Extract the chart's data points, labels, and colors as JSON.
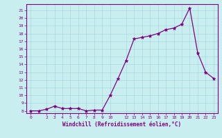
{
  "x": [
    0,
    1,
    2,
    3,
    4,
    5,
    6,
    7,
    8,
    9,
    10,
    11,
    12,
    13,
    14,
    15,
    16,
    17,
    18,
    19,
    20,
    21,
    22,
    23
  ],
  "y": [
    8.0,
    8.0,
    8.2,
    8.6,
    8.3,
    8.3,
    8.3,
    8.0,
    8.1,
    8.1,
    10.0,
    12.2,
    14.5,
    17.3,
    17.5,
    17.7,
    18.0,
    18.5,
    18.7,
    19.2,
    21.3,
    15.5,
    13.0,
    12.2
  ],
  "xlabel": "Windchill (Refroidissement éolien,°C)",
  "line_color": "#800080",
  "bg_color": "#c8eef0",
  "grid_color": "#a8d8dc",
  "tick_color": "#800080",
  "label_color": "#800080",
  "ylim_min": 7.7,
  "ylim_max": 21.8,
  "xlim_min": -0.5,
  "xlim_max": 23.5,
  "yticks": [
    8,
    9,
    10,
    11,
    12,
    13,
    14,
    15,
    16,
    17,
    18,
    19,
    20,
    21
  ],
  "xticks": [
    0,
    2,
    3,
    4,
    5,
    6,
    7,
    8,
    9,
    10,
    12,
    13,
    14,
    15,
    16,
    17,
    18,
    19,
    20,
    21,
    22,
    23
  ]
}
